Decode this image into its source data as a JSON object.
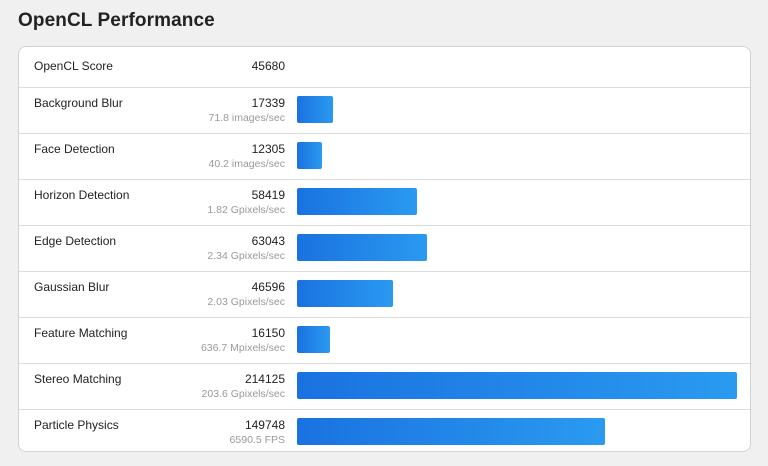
{
  "page": {
    "title": "OpenCL Performance"
  },
  "summary": {
    "label": "OpenCL Score",
    "score": "45680"
  },
  "bar_color": "#1a72e0",
  "bar_color_end": "#2a9af0",
  "max_score": 214125,
  "tests": [
    {
      "name": "Background Blur",
      "score": "17339",
      "value": 17339,
      "unit": "71.8 images/sec"
    },
    {
      "name": "Face Detection",
      "score": "12305",
      "value": 12305,
      "unit": "40.2 images/sec"
    },
    {
      "name": "Horizon Detection",
      "score": "58419",
      "value": 58419,
      "unit": "1.82 Gpixels/sec"
    },
    {
      "name": "Edge Detection",
      "score": "63043",
      "value": 63043,
      "unit": "2.34 Gpixels/sec"
    },
    {
      "name": "Gaussian Blur",
      "score": "46596",
      "value": 46596,
      "unit": "2.03 Gpixels/sec"
    },
    {
      "name": "Feature Matching",
      "score": "16150",
      "value": 16150,
      "unit": "636.7 Mpixels/sec"
    },
    {
      "name": "Stereo Matching",
      "score": "214125",
      "value": 214125,
      "unit": "203.6 Gpixels/sec"
    },
    {
      "name": "Particle Physics",
      "score": "149748",
      "value": 149748,
      "unit": "6590.5 FPS"
    }
  ]
}
